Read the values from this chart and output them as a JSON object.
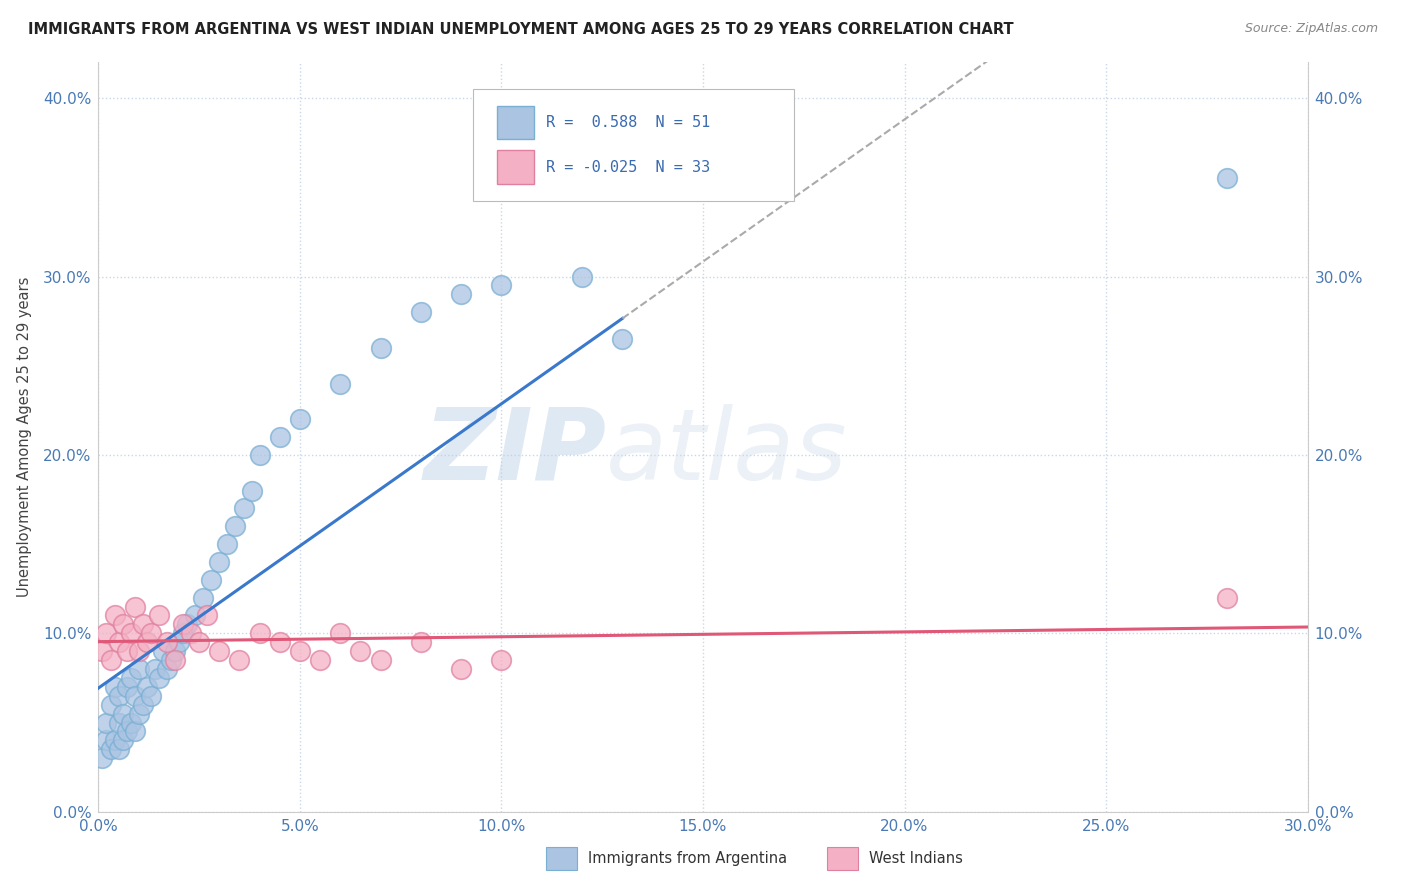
{
  "title": "IMMIGRANTS FROM ARGENTINA VS WEST INDIAN UNEMPLOYMENT AMONG AGES 25 TO 29 YEARS CORRELATION CHART",
  "source": "Source: ZipAtlas.com",
  "ylabel": "Unemployment Among Ages 25 to 29 years",
  "xlim": [
    0.0,
    0.3
  ],
  "ylim": [
    0.0,
    0.42
  ],
  "argentina_color": "#aac4e2",
  "argentina_edge": "#7aafd4",
  "westindian_color": "#f4b0c4",
  "westindian_edge": "#e080a0",
  "argentina_line_color": "#3a78cc",
  "westindian_line_color": "#e05878",
  "r_argentina": 0.588,
  "n_argentina": 51,
  "r_westindian": -0.025,
  "n_westindian": 33,
  "argentina_x": [
    0.001,
    0.002,
    0.002,
    0.003,
    0.003,
    0.004,
    0.004,
    0.005,
    0.005,
    0.005,
    0.006,
    0.006,
    0.007,
    0.007,
    0.008,
    0.008,
    0.009,
    0.009,
    0.01,
    0.01,
    0.011,
    0.012,
    0.013,
    0.014,
    0.015,
    0.016,
    0.017,
    0.018,
    0.019,
    0.02,
    0.021,
    0.022,
    0.024,
    0.026,
    0.028,
    0.03,
    0.032,
    0.034,
    0.036,
    0.038,
    0.04,
    0.045,
    0.05,
    0.06,
    0.07,
    0.08,
    0.09,
    0.1,
    0.12,
    0.13,
    0.28
  ],
  "argentina_y": [
    0.03,
    0.04,
    0.05,
    0.035,
    0.06,
    0.04,
    0.07,
    0.035,
    0.05,
    0.065,
    0.04,
    0.055,
    0.045,
    0.07,
    0.05,
    0.075,
    0.045,
    0.065,
    0.055,
    0.08,
    0.06,
    0.07,
    0.065,
    0.08,
    0.075,
    0.09,
    0.08,
    0.085,
    0.09,
    0.095,
    0.1,
    0.105,
    0.11,
    0.12,
    0.13,
    0.14,
    0.15,
    0.16,
    0.17,
    0.18,
    0.2,
    0.21,
    0.22,
    0.24,
    0.26,
    0.28,
    0.29,
    0.295,
    0.3,
    0.265,
    0.355
  ],
  "westindian_x": [
    0.001,
    0.002,
    0.003,
    0.004,
    0.005,
    0.006,
    0.007,
    0.008,
    0.009,
    0.01,
    0.011,
    0.012,
    0.013,
    0.015,
    0.017,
    0.019,
    0.021,
    0.023,
    0.025,
    0.027,
    0.03,
    0.035,
    0.04,
    0.045,
    0.05,
    0.055,
    0.06,
    0.065,
    0.07,
    0.08,
    0.09,
    0.1,
    0.28
  ],
  "westindian_y": [
    0.09,
    0.1,
    0.085,
    0.11,
    0.095,
    0.105,
    0.09,
    0.1,
    0.115,
    0.09,
    0.105,
    0.095,
    0.1,
    0.11,
    0.095,
    0.085,
    0.105,
    0.1,
    0.095,
    0.11,
    0.09,
    0.085,
    0.1,
    0.095,
    0.09,
    0.085,
    0.1,
    0.09,
    0.085,
    0.095,
    0.08,
    0.085,
    0.12
  ],
  "watermark_zip": "ZIP",
  "watermark_atlas": "atlas",
  "background_color": "#ffffff",
  "grid_color": "#c8d8ea",
  "title_color": "#222222",
  "tick_color": "#4a7ab5",
  "ytick_vals": [
    0.0,
    0.1,
    0.2,
    0.3,
    0.4
  ],
  "ytick_labels": [
    "0.0%",
    "10.0%",
    "20.0%",
    "30.0%",
    "40.0%"
  ],
  "xtick_vals": [
    0.0,
    0.05,
    0.1,
    0.15,
    0.2,
    0.25,
    0.3
  ],
  "xtick_labels": [
    "0.0%",
    "5.0%",
    "10.0%",
    "15.0%",
    "20.0%",
    "25.0%",
    "30.0%"
  ]
}
